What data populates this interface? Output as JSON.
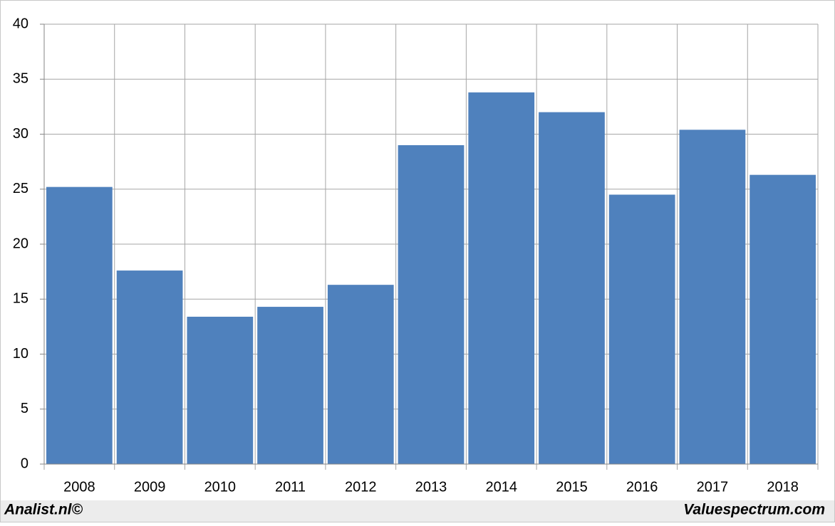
{
  "chart_data": {
    "type": "bar",
    "categories": [
      "2008",
      "2009",
      "2010",
      "2011",
      "2012",
      "2013",
      "2014",
      "2015",
      "2016",
      "2017",
      "2018"
    ],
    "values": [
      25.2,
      17.6,
      13.4,
      14.3,
      16.3,
      29.0,
      33.8,
      32.0,
      24.5,
      30.4,
      26.3
    ],
    "color": "#4f81bd",
    "ylim": [
      0,
      40
    ],
    "yticks": [
      0,
      5,
      10,
      15,
      20,
      25,
      30,
      35,
      40
    ],
    "grid": true
  },
  "footer": {
    "left": "Analist.nl©",
    "right": "Valuespectrum.com"
  }
}
